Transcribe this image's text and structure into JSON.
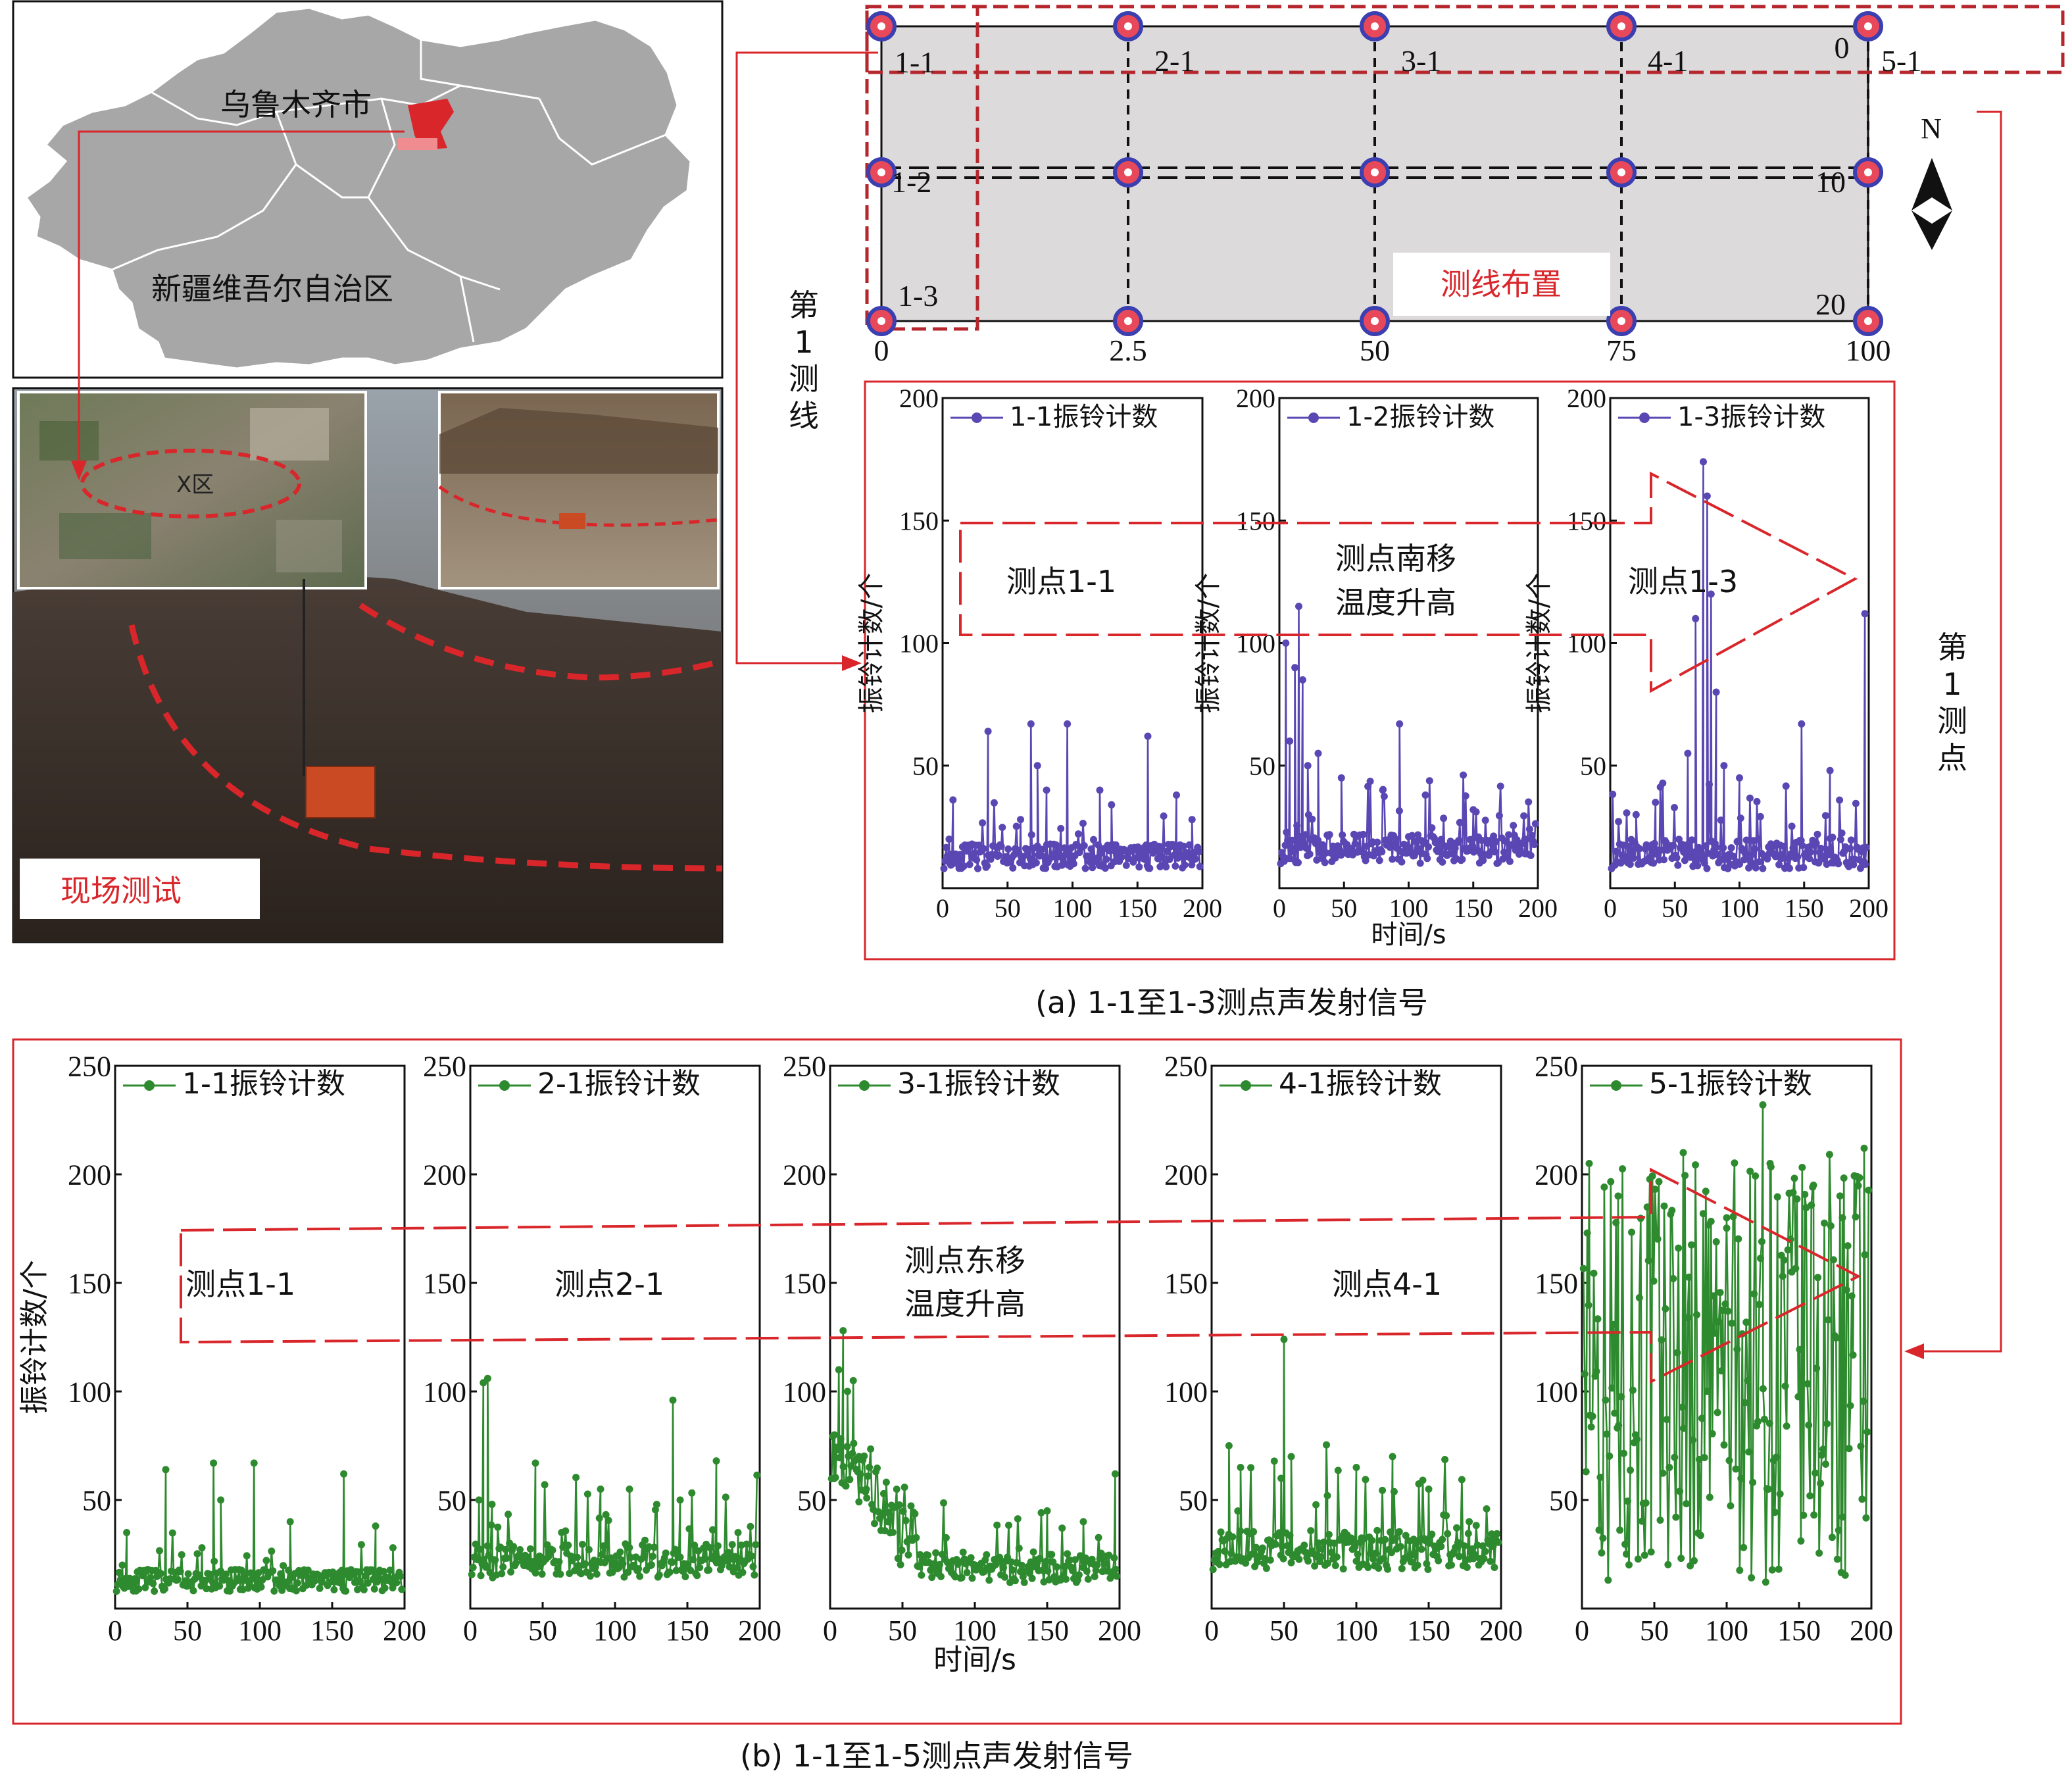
{
  "map": {
    "city_label": "乌鲁木齐市",
    "region_label": "新疆维吾尔自治区"
  },
  "photos": {
    "satellite_label": "X区",
    "field_test_label": "现场测试"
  },
  "layout_grid": {
    "title": "测线布置",
    "x_ticks": [
      "0",
      "2.5",
      "50",
      "75",
      "100"
    ],
    "y_ticks": [
      "0",
      "10",
      "20"
    ],
    "point_labels": [
      "1-1",
      "2-1",
      "3-1",
      "4-1",
      "5-1",
      "1-2",
      "1-3"
    ],
    "north_label": "N",
    "line_label": "第1测线",
    "point_label": "第1测点"
  },
  "captions": {
    "a": "(a) 1-1至1-3测点声发射信号",
    "b": "(b) 1-1至1-5测点声发射信号"
  },
  "annotations": {
    "a_p1": "测点1-1",
    "a_mid_line1": "测点南移",
    "a_mid_line2": "温度升高",
    "a_p3": "测点1-3",
    "b_p1": "测点1-1",
    "b_p2": "测点2-1",
    "b_mid_line1": "测点东移",
    "b_mid_line2": "温度升高",
    "b_p4": "测点4-1"
  },
  "colors": {
    "series_a": "#5a47b3",
    "series_b": "#2e8a2e",
    "accent_red": "#d9262b",
    "grid_fill": "#dcdadb"
  },
  "chart_data": [
    {
      "type": "line",
      "group": "a",
      "ylabel": "振铃计数/个",
      "xlabel": "",
      "xlim": [
        0,
        200
      ],
      "ylim": [
        0,
        200
      ],
      "x_ticks": [
        "0",
        "50",
        "100",
        "150",
        "200"
      ],
      "y_ticks": [
        "50",
        "100",
        "150",
        "200"
      ],
      "legend": "top-left",
      "series": [
        {
          "name": "1-1振铃计数"
        }
      ],
      "peaks": [
        [
          5,
          20
        ],
        [
          8,
          36
        ],
        [
          35,
          64
        ],
        [
          60,
          28
        ],
        [
          68,
          67
        ],
        [
          73,
          50
        ],
        [
          80,
          40
        ],
        [
          96,
          67
        ],
        [
          121,
          40
        ],
        [
          130,
          34
        ],
        [
          158,
          62
        ],
        [
          180,
          38
        ],
        [
          192,
          28
        ]
      ],
      "base": 8,
      "noise": 10,
      "seed": 11
    },
    {
      "type": "line",
      "group": "a",
      "ylabel": "振铃计数/个",
      "xlabel": "时间/s",
      "xlim": [
        0,
        200
      ],
      "ylim": [
        0,
        200
      ],
      "x_ticks": [
        "0",
        "50",
        "100",
        "150",
        "200"
      ],
      "y_ticks": [
        "50",
        "100",
        "150",
        "200"
      ],
      "legend": "top-left",
      "series": [
        {
          "name": "1-2振铃计数"
        }
      ],
      "peaks": [
        [
          5,
          100
        ],
        [
          8,
          60
        ],
        [
          12,
          90
        ],
        [
          15,
          115
        ],
        [
          18,
          85
        ],
        [
          22,
          50
        ],
        [
          30,
          55
        ],
        [
          48,
          45
        ],
        [
          80,
          40
        ],
        [
          93,
          67
        ],
        [
          113,
          38
        ],
        [
          150,
          32
        ],
        [
          190,
          20
        ]
      ],
      "base": 10,
      "noise": 12,
      "seed": 23
    },
    {
      "type": "line",
      "group": "a",
      "ylabel": "振铃计数/个",
      "xlabel": "",
      "xlim": [
        0,
        200
      ],
      "ylim": [
        0,
        200
      ],
      "x_ticks": [
        "0",
        "50",
        "100",
        "150",
        "200"
      ],
      "y_ticks": [
        "50",
        "100",
        "150",
        "200"
      ],
      "legend": "top-left",
      "series": [
        {
          "name": "1-3振铃计数"
        }
      ],
      "peaks": [
        [
          20,
          30
        ],
        [
          35,
          35
        ],
        [
          60,
          55
        ],
        [
          66,
          110
        ],
        [
          72,
          174
        ],
        [
          75,
          160
        ],
        [
          78,
          120
        ],
        [
          82,
          80
        ],
        [
          88,
          50
        ],
        [
          100,
          45
        ],
        [
          148,
          67
        ],
        [
          170,
          48
        ],
        [
          197,
          112
        ]
      ],
      "base": 8,
      "noise": 12,
      "seed": 37
    },
    {
      "type": "line",
      "group": "b",
      "ylabel": "振铃计数/个",
      "xlabel": "",
      "xlim": [
        0,
        200
      ],
      "ylim": [
        0,
        250
      ],
      "x_ticks": [
        "0",
        "50",
        "100",
        "150",
        "200"
      ],
      "y_ticks": [
        "50",
        "100",
        "150",
        "200",
        "250"
      ],
      "legend": "top-left",
      "series": [
        {
          "name": "1-1振铃计数"
        }
      ],
      "peaks": [
        [
          5,
          20
        ],
        [
          8,
          35
        ],
        [
          35,
          64
        ],
        [
          60,
          28
        ],
        [
          68,
          67
        ],
        [
          73,
          50
        ],
        [
          96,
          67
        ],
        [
          121,
          40
        ],
        [
          158,
          62
        ],
        [
          180,
          38
        ],
        [
          192,
          28
        ]
      ],
      "base": 8,
      "noise": 10,
      "seed": 11
    },
    {
      "type": "line",
      "group": "b",
      "ylabel": "",
      "xlabel": "",
      "xlim": [
        0,
        200
      ],
      "ylim": [
        0,
        250
      ],
      "x_ticks": [
        "0",
        "50",
        "100",
        "150",
        "200"
      ],
      "y_ticks": [
        "50",
        "100",
        "150",
        "200",
        "250"
      ],
      "legend": "top-left",
      "series": [
        {
          "name": "2-1振铃计数"
        }
      ],
      "peaks": [
        [
          6,
          50
        ],
        [
          9,
          104
        ],
        [
          12,
          106
        ],
        [
          15,
          48
        ],
        [
          45,
          67
        ],
        [
          90,
          55
        ],
        [
          110,
          55
        ],
        [
          140,
          96
        ],
        [
          145,
          50
        ],
        [
          170,
          68
        ],
        [
          185,
          35
        ]
      ],
      "base": 14,
      "noise": 16,
      "seed": 53
    },
    {
      "type": "line",
      "group": "b",
      "ylabel": "",
      "xlabel": "时间/s",
      "xlim": [
        0,
        200
      ],
      "ylim": [
        0,
        250
      ],
      "x_ticks": [
        "0",
        "50",
        "100",
        "150",
        "200"
      ],
      "y_ticks": [
        "50",
        "100",
        "150",
        "200",
        "250"
      ],
      "legend": "top-left",
      "series": [
        {
          "name": "3-1振铃计数"
        }
      ],
      "peaks": [
        [
          3,
          80
        ],
        [
          6,
          110
        ],
        [
          9,
          128
        ],
        [
          12,
          100
        ],
        [
          16,
          105
        ],
        [
          20,
          70
        ],
        [
          25,
          55
        ],
        [
          40,
          40
        ],
        [
          150,
          45
        ],
        [
          175,
          40
        ],
        [
          197,
          62
        ]
      ],
      "base": 12,
      "noise": 14,
      "seed": 71,
      "decay": [
        60,
        40
      ]
    },
    {
      "type": "line",
      "group": "b",
      "ylabel": "",
      "xlabel": "",
      "xlim": [
        0,
        200
      ],
      "ylim": [
        0,
        250
      ],
      "x_ticks": [
        "0",
        "50",
        "100",
        "150",
        "200"
      ],
      "y_ticks": [
        "50",
        "100",
        "150",
        "200",
        "250"
      ],
      "legend": "top-left",
      "series": [
        {
          "name": "4-1振铃计数"
        }
      ],
      "peaks": [
        [
          12,
          75
        ],
        [
          20,
          65
        ],
        [
          48,
          60
        ],
        [
          50,
          124
        ],
        [
          55,
          70
        ],
        [
          80,
          52
        ],
        [
          100,
          65
        ],
        [
          125,
          70
        ],
        [
          150,
          55
        ],
        [
          178,
          40
        ],
        [
          195,
          30
        ]
      ],
      "base": 18,
      "noise": 18,
      "seed": 89
    },
    {
      "type": "line",
      "group": "b",
      "ylabel": "",
      "xlabel": "",
      "xlim": [
        0,
        200
      ],
      "ylim": [
        0,
        250
      ],
      "x_ticks": [
        "0",
        "50",
        "100",
        "150",
        "200"
      ],
      "y_ticks": [
        "50",
        "100",
        "150",
        "200",
        "250"
      ],
      "legend": "top-left",
      "series": [
        {
          "name": "5-1振铃计数"
        }
      ],
      "peaks": [
        [
          5,
          205
        ],
        [
          25,
          190
        ],
        [
          70,
          210
        ],
        [
          100,
          180
        ],
        [
          125,
          232
        ],
        [
          130,
          205
        ],
        [
          160,
          195
        ],
        [
          180,
          180
        ],
        [
          195,
          212
        ]
      ],
      "base": 10,
      "noise": 190,
      "seed": 97,
      "wide": true
    }
  ]
}
